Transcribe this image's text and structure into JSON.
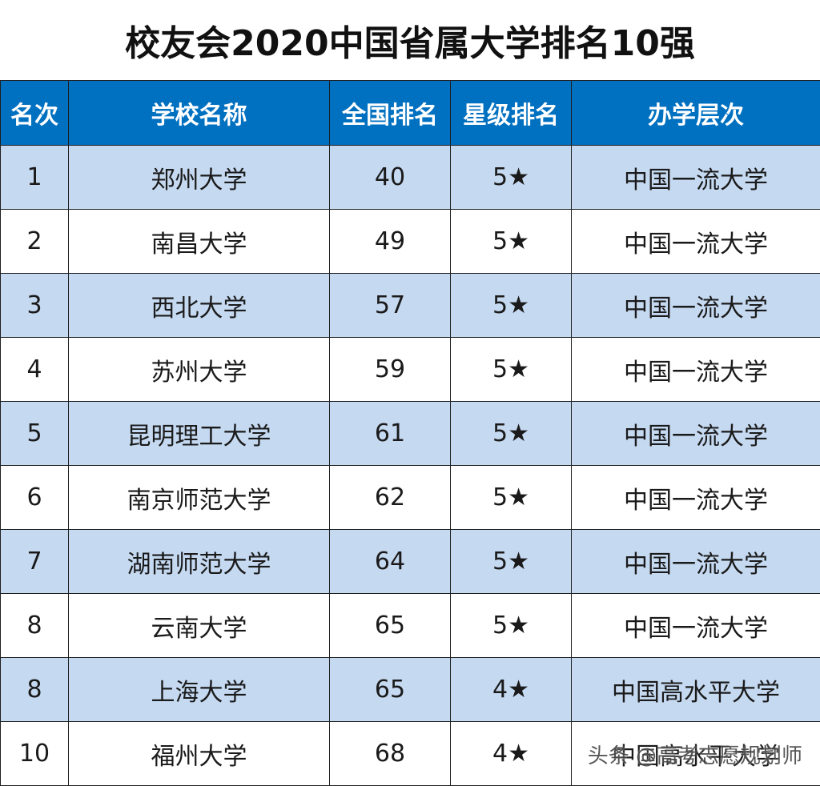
{
  "title": "校友会2020中国省属大学排名10强",
  "headers": [
    "名次",
    "学校名称",
    "全国排名",
    "星级排名",
    "办学层次"
  ],
  "rows": [
    {
      "rank": "1",
      "school": "郑州大学",
      "national_rank": "40",
      "stars": "5★",
      "level": "中国一流大学"
    },
    {
      "rank": "2",
      "school": "南昌大学",
      "national_rank": "49",
      "stars": "5★",
      "level": "中国一流大学"
    },
    {
      "rank": "3",
      "school": "西北大学",
      "national_rank": "57",
      "stars": "5★",
      "level": "中国一流大学"
    },
    {
      "rank": "4",
      "school": "苏州大学",
      "national_rank": "59",
      "stars": "5★",
      "level": "中国一流大学"
    },
    {
      "rank": "5",
      "school": "昆明理工大学",
      "national_rank": "61",
      "stars": "5★",
      "level": "中国一流大学"
    },
    {
      "rank": "6",
      "school": "南京师范大学",
      "national_rank": "62",
      "stars": "5★",
      "level": "中国一流大学"
    },
    {
      "rank": "7",
      "school": "湖南师范大学",
      "national_rank": "64",
      "stars": "5★",
      "level": "中国一流大学"
    },
    {
      "rank": "8",
      "school": "云南大学",
      "national_rank": "65",
      "stars": "5★",
      "level": "中国一流大学"
    },
    {
      "rank": "8",
      "school": "上海大学",
      "national_rank": "65",
      "stars": "4★",
      "level": "中国高水平大学"
    },
    {
      "rank": "10",
      "school": "福州大学",
      "national_rank": "68",
      "stars": "4★",
      "level": "中国高水平大学"
    }
  ],
  "watermark": "头条 @高考志愿规划师",
  "colors": {
    "header_bg": "#0070c0",
    "stripe_bg": "#c5d9f1",
    "header_text": "#ffffff"
  }
}
